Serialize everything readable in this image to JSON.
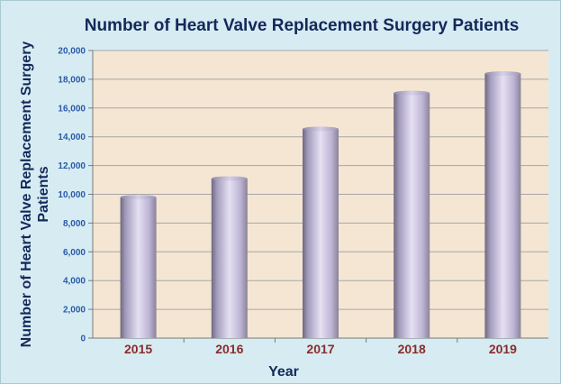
{
  "chart_data": {
    "type": "bar",
    "title": "Number of Heart Valve Replacement Surgery Patients",
    "xlabel": "Year",
    "ylabel": "Number of Heart Valve Replacement Surgery Patients",
    "categories": [
      "2015",
      "2016",
      "2017",
      "2018",
      "2019"
    ],
    "values": [
      9800,
      11100,
      14550,
      17050,
      18400
    ],
    "ylim": [
      0,
      20000
    ],
    "yticks": [
      "0",
      "2,000",
      "4,000",
      "6,000",
      "8,000",
      "10,000",
      "12,000",
      "14,000",
      "16,000",
      "18,000",
      "20,000"
    ],
    "grid": true,
    "legend": "none"
  },
  "colors": {
    "background": "#d6ecf2",
    "plot_area": "#f5e6d3",
    "bar": "#c9c2dd",
    "title": "#14285a",
    "ytick": "#2a5aa8",
    "xtick": "#8b2b2b"
  }
}
